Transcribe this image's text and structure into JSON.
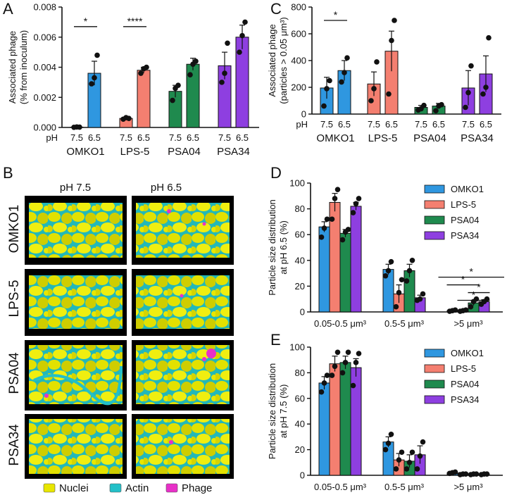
{
  "colors": {
    "OMKO1": "#2f97e0",
    "LPS-5": "#f47f70",
    "PSA04": "#1f8a4e",
    "PSA34": "#8e3fe0",
    "nuclei": "#e8e600",
    "actin": "#23c0c8",
    "phage": "#e830c8"
  },
  "panel_labels": {
    "A": "A",
    "B": "B",
    "C": "C",
    "D": "D",
    "E": "E"
  },
  "microscopy": {
    "col_headers": [
      "pH 7.5",
      "pH 6.5"
    ],
    "rows": [
      "OMKO1",
      "LPS-5",
      "PSA04",
      "PSA34"
    ],
    "legend": [
      {
        "label": "Nuclei",
        "color_key": "nuclei"
      },
      {
        "label": "Actin",
        "color_key": "actin"
      },
      {
        "label": "Phage",
        "color_key": "phage"
      }
    ]
  },
  "chart_data": [
    {
      "panel": "A",
      "type": "bar",
      "ylabel_lines": [
        "Associated phage",
        "(% from inoculum)"
      ],
      "ylim": [
        0,
        0.008
      ],
      "yticks": [
        "0.000",
        "0.002",
        "0.004",
        "0.006",
        "0.008"
      ],
      "x_prefix": "pH",
      "groups": [
        "OMKO1",
        "LPS-5",
        "PSA04",
        "PSA34"
      ],
      "sub_labels": [
        "7.5",
        "6.5"
      ],
      "bars": [
        {
          "group": "OMKO1",
          "ph": "7.5",
          "value": 2e-05,
          "err": 1e-05,
          "points": [
            1e-05,
            3e-05,
            2e-05
          ]
        },
        {
          "group": "OMKO1",
          "ph": "6.5",
          "value": 0.0036,
          "err": 0.0008,
          "points": [
            0.0029,
            0.0033,
            0.0048
          ]
        },
        {
          "group": "LPS-5",
          "ph": "7.5",
          "value": 0.0006,
          "err": 0.0001,
          "points": [
            0.00055,
            0.00065,
            0.0006
          ]
        },
        {
          "group": "LPS-5",
          "ph": "6.5",
          "value": 0.0038,
          "err": 0.0002,
          "points": [
            0.0036,
            0.0039,
            0.004
          ]
        },
        {
          "group": "PSA04",
          "ph": "7.5",
          "value": 0.0024,
          "err": 0.0004,
          "points": [
            0.0018,
            0.0026,
            0.0028
          ]
        },
        {
          "group": "PSA04",
          "ph": "6.5",
          "value": 0.0042,
          "err": 0.0004,
          "points": [
            0.0035,
            0.0042,
            0.0044
          ]
        },
        {
          "group": "PSA34",
          "ph": "7.5",
          "value": 0.0041,
          "err": 0.0009,
          "points": [
            0.003,
            0.0036,
            0.0056
          ]
        },
        {
          "group": "PSA34",
          "ph": "6.5",
          "value": 0.006,
          "err": 0.0008,
          "points": [
            0.005,
            0.0061,
            0.007
          ]
        }
      ],
      "significance": [
        {
          "from": 0,
          "to": 1,
          "y": 0.0067,
          "label": "*"
        },
        {
          "from": 2,
          "to": 3,
          "y": 0.0067,
          "label": "****"
        }
      ]
    },
    {
      "panel": "C",
      "type": "bar",
      "ylabel_lines": [
        "Associated phage",
        "(particles > 0.05 μm³)"
      ],
      "ylim": [
        0,
        800
      ],
      "yticks": [
        "0",
        "200",
        "400",
        "600",
        "800"
      ],
      "x_prefix": "pH",
      "groups": [
        "OMKO1",
        "LPS-5",
        "PSA04",
        "PSA34"
      ],
      "sub_labels": [
        "7.5",
        "6.5"
      ],
      "bars": [
        {
          "group": "OMKO1",
          "ph": "7.5",
          "value": 195,
          "err": 80,
          "points": [
            60,
            190,
            250
          ]
        },
        {
          "group": "OMKO1",
          "ph": "6.5",
          "value": 325,
          "err": 75,
          "points": [
            240,
            310,
            420
          ]
        },
        {
          "group": "LPS-5",
          "ph": "7.5",
          "value": 225,
          "err": 90,
          "points": [
            100,
            190,
            390
          ]
        },
        {
          "group": "LPS-5",
          "ph": "6.5",
          "value": 470,
          "err": 150,
          "points": [
            150,
            550,
            700
          ]
        },
        {
          "group": "PSA04",
          "ph": "7.5",
          "value": 50,
          "err": 15,
          "points": [
            30,
            40,
            65
          ]
        },
        {
          "group": "PSA04",
          "ph": "6.5",
          "value": 60,
          "err": 20,
          "points": [
            25,
            60,
            70
          ]
        },
        {
          "group": "PSA34",
          "ph": "7.5",
          "value": 195,
          "err": 130,
          "points": [
            50,
            160,
            360
          ]
        },
        {
          "group": "PSA34",
          "ph": "6.5",
          "value": 300,
          "err": 135,
          "points": [
            150,
            200,
            570
          ]
        }
      ],
      "significance": [
        {
          "from": 0,
          "to": 1,
          "y": 700,
          "label": "*"
        }
      ]
    },
    {
      "panel": "D",
      "type": "bar",
      "ylabel_lines": [
        "Particle size distribution",
        "at pH 6.5 (%)"
      ],
      "ylim": [
        0,
        100
      ],
      "yticks": [
        "0",
        "20",
        "40",
        "60",
        "80",
        "100"
      ],
      "categories": [
        "0.05-0.5 μm³",
        "0.5-5 μm³",
        ">5 μm³"
      ],
      "series": [
        {
          "name": "OMKO1",
          "values": [
            66,
            33,
            1
          ],
          "errs": [
            4,
            4,
            0.4
          ],
          "points": [
            [
              58,
              65,
              72
            ],
            [
              28,
              32,
              39
            ],
            [
              0.5,
              1,
              1.5
            ]
          ]
        },
        {
          "name": "LPS-5",
          "values": [
            85,
            14,
            1
          ],
          "errs": [
            7,
            7,
            0.4
          ],
          "points": [
            [
              72,
              88,
              95
            ],
            [
              4,
              15,
              25
            ],
            [
              0.5,
              1,
              1.5
            ]
          ]
        },
        {
          "name": "PSA04",
          "values": [
            61,
            32,
            7
          ],
          "errs": [
            3,
            5,
            2
          ],
          "points": [
            [
              56,
              62,
              64
            ],
            [
              24,
              32,
              40
            ],
            [
              4,
              8,
              10
            ]
          ]
        },
        {
          "name": "PSA34",
          "values": [
            82,
            11,
            8
          ],
          "errs": [
            3,
            2,
            1.5
          ],
          "points": [
            [
              77,
              84,
              88
            ],
            [
              9,
              10,
              14
            ],
            [
              6,
              8,
              10
            ]
          ]
        }
      ],
      "significance": [
        {
          "from": 0,
          "to": 3,
          "y": 27,
          "label": "*"
        },
        {
          "from": 0,
          "to": 2,
          "y": 21,
          "label": "*"
        },
        {
          "from": 2,
          "to": 3,
          "y": 15,
          "label": "*"
        },
        {
          "from": 1,
          "to": 3,
          "y": 9,
          "label": "*"
        }
      ]
    },
    {
      "panel": "E",
      "type": "bar",
      "ylabel_lines": [
        "Particle size distribution",
        "at pH 7.5 (%)"
      ],
      "ylim": [
        0,
        100
      ],
      "yticks": [
        "0",
        "20",
        "40",
        "60",
        "80",
        "100"
      ],
      "categories": [
        "0.05-0.5 μm³",
        "0.5-5 μm³",
        ">5 μm³"
      ],
      "series": [
        {
          "name": "OMKO1",
          "values": [
            72,
            26,
            2
          ],
          "errs": [
            5,
            4,
            0.5
          ],
          "points": [
            [
              65,
              72,
              78
            ],
            [
              20,
              25,
              32
            ],
            [
              1.5,
              2,
              2.5
            ]
          ]
        },
        {
          "name": "LPS-5",
          "values": [
            87,
            12,
            1
          ],
          "errs": [
            6,
            5,
            0.3
          ],
          "points": [
            [
              78,
              85,
              96
            ],
            [
              5,
              12,
              18
            ],
            [
              0.5,
              1,
              1
            ]
          ]
        },
        {
          "name": "PSA04",
          "values": [
            88,
            11,
            1
          ],
          "errs": [
            5,
            5,
            0.3
          ],
          "points": [
            [
              80,
              88,
              96
            ],
            [
              5,
              10,
              18
            ],
            [
              0.5,
              1,
              1
            ]
          ]
        },
        {
          "name": "PSA34",
          "values": [
            84,
            16,
            1
          ],
          "errs": [
            7,
            7,
            0.3
          ],
          "points": [
            [
              70,
              88,
              95
            ],
            [
              5,
              15,
              26
            ],
            [
              0.5,
              1,
              1
            ]
          ]
        }
      ],
      "significance": []
    }
  ]
}
